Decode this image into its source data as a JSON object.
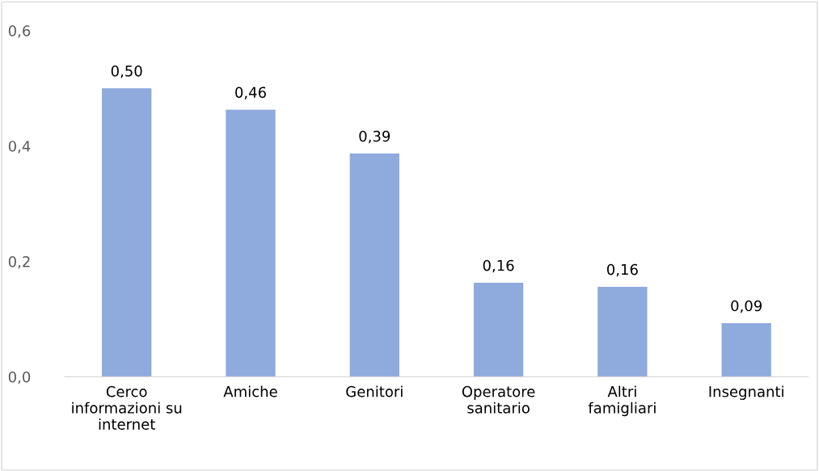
{
  "chart_data": {
    "type": "bar",
    "categories": [
      "Cerco informazioni su internet",
      "Amiche",
      "Genitori",
      "Operatore sanitario",
      "Altri famigliari",
      "Insegnanti"
    ],
    "values": [
      0.5,
      0.463,
      0.387,
      0.163,
      0.156,
      0.093
    ],
    "value_labels": [
      "0,50",
      "0,46",
      "0,39",
      "0,16",
      "0,16",
      "0,09"
    ],
    "color": "#8faadc",
    "ylim": [
      0,
      0.6
    ],
    "yticks": [
      {
        "value": 0,
        "label": "0,0"
      },
      {
        "value": 0.2,
        "label": "0,2"
      },
      {
        "value": 0.4,
        "label": "0,4"
      },
      {
        "value": 0.6,
        "label": "0,6"
      }
    ],
    "grid": false
  }
}
